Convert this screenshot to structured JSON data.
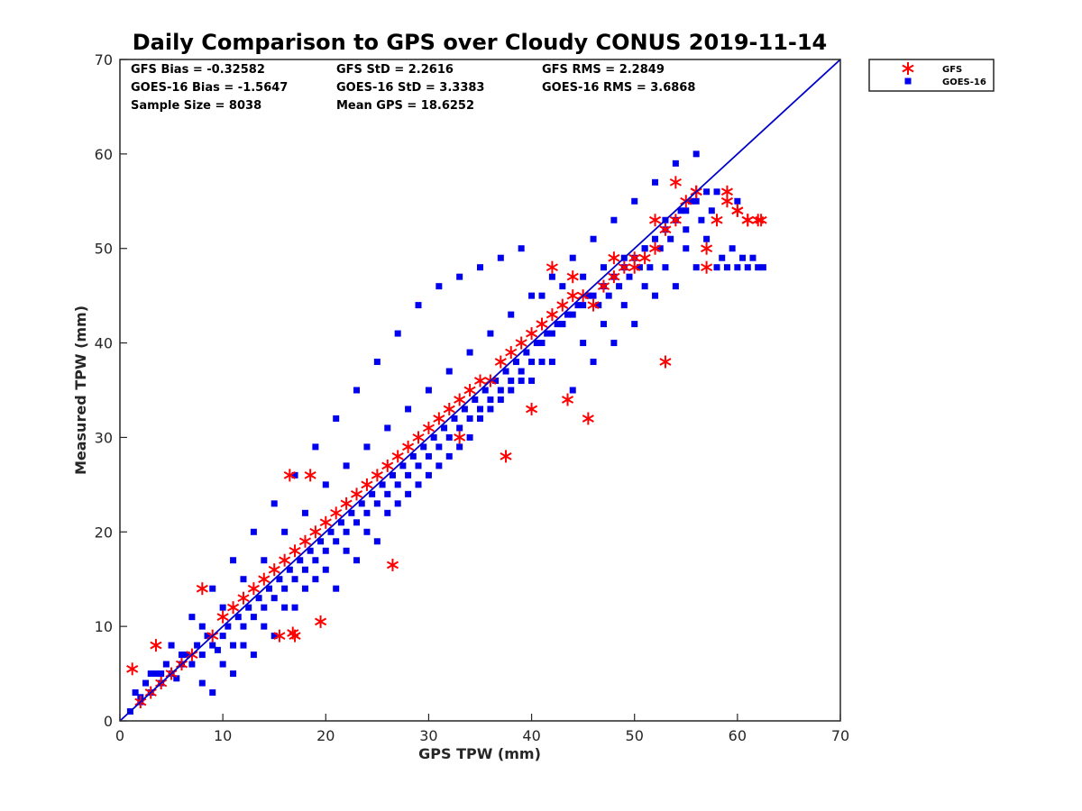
{
  "chart_data": {
    "type": "scatter",
    "title": "Daily Comparison to GPS over Cloudy CONUS 2019-11-14",
    "xlabel": "GPS TPW (mm)",
    "ylabel": "Measured TPW (mm)",
    "xlim": [
      0,
      70
    ],
    "ylim": [
      0,
      70
    ],
    "xticks": [
      "0",
      "10",
      "20",
      "30",
      "40",
      "50",
      "60",
      "70"
    ],
    "yticks": [
      "0",
      "10",
      "20",
      "30",
      "40",
      "50",
      "60",
      "70"
    ],
    "grid": false,
    "legend_position": "outside-top-right",
    "reference_line": {
      "x": [
        0,
        70
      ],
      "y": [
        0,
        70
      ],
      "color": "#0000cc"
    },
    "annotations": [
      "GFS Bias = -0.32582",
      "GFS StD = 2.2616",
      "GFS RMS = 2.2849",
      "GOES-16 Bias = -1.5647",
      "GOES-16 StD = 3.3383",
      "GOES-16 RMS = 3.6868",
      "Sample Size = 8038",
      "Mean GPS = 18.6252"
    ],
    "series": [
      {
        "name": "GOES-16",
        "marker": "square",
        "color": "#0000ee",
        "x": [
          1,
          1.5,
          2,
          2.5,
          3,
          3.5,
          4,
          4.5,
          5,
          5.5,
          6,
          6.5,
          7,
          7.5,
          8,
          8.5,
          9,
          9.5,
          10,
          10.5,
          11,
          11.5,
          12,
          12.5,
          13,
          13.5,
          14,
          14.5,
          15,
          15.5,
          16,
          16.5,
          17,
          17.5,
          18,
          18.5,
          19,
          19.5,
          20,
          20.5,
          21,
          21.5,
          22,
          22.5,
          23,
          23.5,
          24,
          24.5,
          25,
          25.5,
          26,
          26.5,
          27,
          27.5,
          28,
          28.5,
          29,
          29.5,
          30,
          30.5,
          31,
          31.5,
          32,
          32.5,
          33,
          33.5,
          34,
          34.5,
          35,
          35.5,
          36,
          36.5,
          37,
          37.5,
          38,
          38.5,
          39,
          39.5,
          40,
          40.5,
          41,
          41.5,
          42,
          42.5,
          43,
          43.5,
          44,
          44.5,
          45,
          45.5,
          46,
          46.5,
          47,
          47.5,
          48,
          48.5,
          49,
          49.5,
          50,
          50.5,
          51,
          51.5,
          52,
          52.5,
          53,
          53.5,
          54,
          54.5,
          55,
          55.5,
          56,
          56.5,
          57,
          57.5,
          58,
          58.5,
          59,
          59.5,
          60,
          60.5,
          61,
          61.5,
          62,
          62.5,
          3,
          5,
          7,
          9,
          11,
          13,
          15,
          17,
          19,
          21,
          23,
          25,
          27,
          29,
          31,
          33,
          35,
          37,
          39,
          41,
          43,
          45,
          47,
          49,
          51,
          53,
          55,
          57,
          2,
          4,
          6,
          8,
          10,
          12,
          14,
          16,
          18,
          20,
          22,
          24,
          26,
          28,
          30,
          32,
          34,
          36,
          38,
          40,
          42,
          44,
          46,
          48,
          50,
          52,
          54,
          56,
          58,
          60,
          8,
          10,
          12,
          14,
          16,
          18,
          20,
          22,
          24,
          26,
          28,
          30,
          32,
          34,
          36,
          38,
          40,
          42,
          44,
          46,
          48,
          50,
          52,
          54,
          56,
          9,
          11,
          13,
          15,
          17,
          19,
          21,
          23,
          25,
          27,
          29,
          31,
          33,
          35,
          37,
          39,
          41,
          43,
          45,
          47,
          49,
          51,
          53,
          55
        ],
        "y": [
          1,
          3,
          2.5,
          4,
          3,
          5,
          4,
          6,
          5,
          4.5,
          6,
          7,
          6,
          8,
          7,
          9,
          8,
          7.5,
          9,
          10,
          8,
          11,
          10,
          12,
          11,
          13,
          12,
          14,
          13,
          15,
          14,
          16,
          15,
          17,
          16,
          18,
          17,
          19,
          18,
          20,
          19,
          21,
          20,
          22,
          21,
          23,
          22,
          24,
          23,
          25,
          24,
          26,
          25,
          27,
          26,
          28,
          27,
          29,
          28,
          30,
          29,
          31,
          30,
          32,
          31,
          33,
          32,
          34,
          33,
          35,
          34,
          36,
          35,
          37,
          36,
          38,
          37,
          39,
          38,
          40,
          40,
          41,
          41,
          42,
          42,
          43,
          43,
          44,
          44,
          45,
          45,
          44,
          46,
          45,
          47,
          46,
          48,
          47,
          49,
          48,
          50,
          48,
          51,
          50,
          52,
          51,
          53,
          54,
          54,
          55,
          55,
          53,
          56,
          54,
          48,
          49,
          48,
          50,
          48,
          49,
          48,
          49,
          48,
          48,
          5,
          8,
          11,
          14,
          17,
          20,
          23,
          26,
          29,
          32,
          35,
          38,
          41,
          44,
          46,
          47,
          48,
          49,
          50,
          45,
          46,
          47,
          48,
          49,
          50,
          53,
          52,
          51,
          2,
          5,
          7,
          10,
          12,
          15,
          17,
          20,
          22,
          25,
          27,
          29,
          31,
          33,
          35,
          37,
          39,
          41,
          43,
          45,
          47,
          49,
          51,
          53,
          55,
          57,
          59,
          60,
          56,
          55,
          4,
          6,
          8,
          10,
          12,
          14,
          16,
          18,
          20,
          22,
          24,
          26,
          28,
          30,
          33,
          35,
          36,
          38,
          35,
          38,
          40,
          42,
          45,
          46,
          48,
          3,
          5,
          7,
          9,
          12,
          15,
          14,
          17,
          19,
          23,
          25,
          27,
          29,
          32,
          34,
          36,
          38,
          42,
          40,
          42,
          44,
          46,
          48,
          50
        ]
      },
      {
        "name": "GFS",
        "marker": "asterisk",
        "color": "#ff0000",
        "x": [
          1.2,
          2,
          3,
          3.5,
          4,
          5,
          6,
          7,
          8,
          9,
          10,
          11,
          12,
          13,
          14,
          15,
          16,
          17,
          18,
          19,
          20,
          21,
          22,
          23,
          24,
          25,
          26,
          27,
          28,
          29,
          30,
          31,
          32,
          33,
          34,
          35,
          36,
          37,
          38,
          39,
          40,
          41,
          42,
          43,
          44,
          45,
          46,
          47,
          48,
          49,
          50,
          51,
          52,
          53,
          54,
          55,
          56,
          57,
          58,
          59,
          60,
          61,
          62,
          16.5,
          17,
          18.5,
          19.5,
          15.5,
          16.8,
          26.5,
          33,
          37.5,
          40,
          45.5,
          43.5,
          53,
          42,
          44,
          48,
          50,
          52,
          54,
          56,
          57,
          59,
          60,
          61,
          62.3
        ],
        "y": [
          5.5,
          2,
          3,
          8,
          4,
          5,
          6,
          7,
          14,
          9,
          11,
          12,
          13,
          14,
          15,
          16,
          17,
          18,
          19,
          20,
          21,
          22,
          23,
          24,
          25,
          26,
          27,
          28,
          29,
          30,
          31,
          32,
          33,
          34,
          35,
          36,
          36,
          38,
          39,
          40,
          41,
          42,
          43,
          44,
          45,
          45,
          44,
          46,
          47,
          48,
          48,
          49,
          50,
          52,
          53,
          55,
          56,
          50,
          53,
          55,
          54,
          53,
          53,
          26,
          9,
          26,
          10.5,
          9,
          9.3,
          16.5,
          30,
          28,
          33,
          32,
          34,
          38,
          48,
          47,
          49,
          49,
          53,
          57,
          56,
          48,
          56,
          54,
          53,
          53
        ]
      }
    ]
  }
}
